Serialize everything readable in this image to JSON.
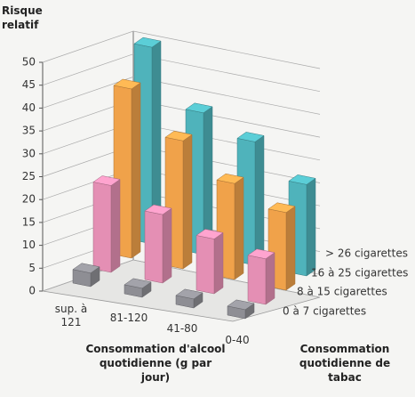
{
  "chart_data": {
    "type": "bar3d",
    "y_label": "Risque relatif",
    "x_label": "Consommation d'alcool quotidienne (g par jour)",
    "depth_label": "Consommation quotidienne de tabac",
    "categories": [
      "sup. à 121",
      "81-120",
      "41-80",
      "0-40"
    ],
    "series": [
      {
        "name": "0 à 7 cigarettes",
        "color": "#8e8e94",
        "values": [
          2,
          1,
          1,
          1
        ]
      },
      {
        "name": "8 à 15 cigarettes",
        "color": "#e48fb4",
        "values": [
          18,
          14,
          11,
          9
        ]
      },
      {
        "name": "16 à 25 cigarettes",
        "color": "#f0a24a",
        "values": [
          36,
          27,
          20,
          16
        ]
      },
      {
        "name": "> 26 cigarettes",
        "color": "#4fb3bb",
        "values": [
          42,
          30,
          26,
          19
        ]
      }
    ],
    "ylim": [
      0,
      50
    ],
    "yticks": [
      0,
      5,
      10,
      15,
      20,
      25,
      30,
      35,
      40,
      45,
      50
    ],
    "grid": true
  }
}
